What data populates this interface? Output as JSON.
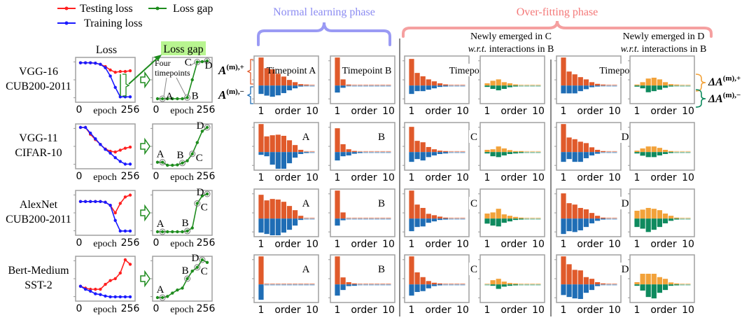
{
  "legend": {
    "testing": "Testing loss",
    "training": "Training loss",
    "gap": "Loss gap"
  },
  "headers": {
    "loss": "Loss",
    "loss_gap": "Loss gap",
    "normal_phase": "Normal learning phase",
    "overfit_phase": "Over-fitting phase",
    "newly_c": {
      "line1": "Newly emerged in C",
      "wrt": "w.r.t.",
      "line2": " interactions in B"
    },
    "newly_d": {
      "line1": "Newly emerged in D",
      "wrt": "w.r.t.",
      "line2": " interactions in B"
    }
  },
  "annotations": {
    "four_timepoints": [
      "Four",
      "timepoints"
    ],
    "a_plus": {
      "base": "A",
      "sup": "(m),+"
    },
    "a_minus": {
      "base": "A",
      "sup": "(m),−"
    },
    "delta_plus": {
      "base": "ΔA",
      "sup": "(m),+"
    },
    "delta_minus": {
      "base": "ΔA",
      "sup": "(m),−"
    }
  },
  "axis": {
    "epoch": "epoch",
    "epoch_min": "0",
    "epoch_max": "256",
    "order": "order",
    "order_min": "1",
    "order_max": "10"
  },
  "colors": {
    "testing": "#ff2020",
    "training": "#1a1aff",
    "gap": "#1e8c1e",
    "pos": "#e05a2b",
    "neg": "#1f6db5",
    "dpos": "#f2a23a",
    "dneg": "#0e8a5e",
    "normal_phase": "#8c8cf2",
    "overfit_phase": "#f47878",
    "highlight": "#b8f590"
  },
  "chart_data": [
    {
      "model": [
        "VGG-16",
        "CUB200-2011"
      ],
      "loss": {
        "type": "line",
        "xlabel": "epoch",
        "x": [
          0,
          26,
          51,
          77,
          102,
          128,
          154,
          179,
          205,
          230,
          256
        ],
        "series": [
          {
            "name": "Testing loss",
            "values": [
              0.95,
              0.95,
              0.95,
              0.94,
              0.91,
              0.85,
              0.76,
              0.7,
              0.72,
              0.72,
              0.74
            ]
          },
          {
            "name": "Training loss",
            "values": [
              0.95,
              0.95,
              0.95,
              0.94,
              0.91,
              0.82,
              0.6,
              0.3,
              0.05,
              0.05,
              0.05
            ]
          }
        ]
      },
      "gap": {
        "type": "line",
        "xlabel": "epoch",
        "x": [
          0,
          26,
          51,
          77,
          102,
          128,
          154,
          179,
          205,
          230,
          256
        ],
        "values": [
          0,
          0,
          0,
          0,
          0,
          0,
          0.03,
          0.5,
          0.97,
          0.98,
          1.0
        ],
        "timepoints": {
          "A": 1,
          "B": 6,
          "C": 8,
          "D": 10
        }
      },
      "bar_labels": {
        "A": "Timepoint A",
        "B": "Timepoint B",
        "C": "Timepoint C",
        "D": "Timepoint D"
      },
      "bars": {
        "A": {
          "pos": [
            1.0,
            0.62,
            0.58,
            0.42,
            0.32,
            0.2,
            0.12,
            0.05,
            0.02,
            0
          ],
          "neg": [
            -0.3,
            -0.36,
            -0.4,
            -0.35,
            -0.27,
            -0.17,
            -0.1,
            -0.03,
            -0.01,
            0
          ]
        },
        "B": {
          "pos": [
            1.0,
            0.22,
            0.03,
            0.01,
            0,
            0,
            0,
            0,
            0,
            0
          ],
          "neg": [
            -0.25,
            -0.08,
            -0.01,
            -0.01,
            -0.01,
            0,
            0,
            0,
            0,
            0
          ]
        },
        "C": {
          "pos": [
            0.95,
            0.45,
            0.33,
            0.22,
            0.15,
            0.08,
            0.04,
            0.01,
            0.01,
            0
          ],
          "neg": [
            -0.3,
            -0.2,
            -0.2,
            -0.15,
            -0.1,
            -0.05,
            -0.02,
            -0.01,
            -0.01,
            0
          ]
        },
        "dC": {
          "pos": [
            0.08,
            0.17,
            0.22,
            0.12,
            0.08,
            0.04,
            0.01,
            0,
            0,
            0
          ],
          "neg": [
            -0.05,
            -0.12,
            -0.17,
            -0.12,
            -0.06,
            -0.03,
            -0.01,
            -0.01,
            -0.01,
            0
          ]
        },
        "D": {
          "pos": [
            1.0,
            0.5,
            0.4,
            0.3,
            0.22,
            0.12,
            0.06,
            0.02,
            0.01,
            0
          ],
          "neg": [
            -0.28,
            -0.28,
            -0.28,
            -0.2,
            -0.13,
            -0.06,
            -0.02,
            -0.01,
            0,
            0
          ]
        },
        "dD": {
          "pos": [
            0.02,
            0.12,
            0.25,
            0.28,
            0.22,
            0.12,
            0.05,
            0.02,
            0,
            0
          ],
          "neg": [
            -0.04,
            -0.1,
            -0.24,
            -0.2,
            -0.15,
            -0.08,
            -0.03,
            -0.01,
            -0.01,
            0
          ]
        }
      }
    },
    {
      "model": [
        "VGG-11",
        "CIFAR-10"
      ],
      "loss": {
        "type": "line",
        "xlabel": "epoch",
        "x": [
          0,
          26,
          51,
          77,
          102,
          128,
          154,
          179,
          205,
          230,
          256
        ],
        "series": [
          {
            "name": "Testing loss",
            "values": [
              1.0,
              1.0,
              0.82,
              0.68,
              0.55,
              0.43,
              0.37,
              0.35,
              0.4,
              0.45,
              0.48
            ]
          },
          {
            "name": "Training loss",
            "values": [
              1.0,
              1.0,
              0.85,
              0.7,
              0.55,
              0.42,
              0.32,
              0.2,
              0.1,
              0.03,
              0.03
            ]
          }
        ]
      },
      "gap": {
        "type": "line",
        "xlabel": "epoch",
        "x": [
          0,
          26,
          51,
          77,
          102,
          128,
          154,
          179,
          205,
          230,
          256
        ],
        "values": [
          0.08,
          0.08,
          0,
          0,
          0.01,
          0.06,
          0.12,
          0.3,
          0.6,
          0.9,
          1.0
        ],
        "timepoints": {
          "A": 1,
          "B": 5,
          "C": 7,
          "D": 10
        }
      },
      "bar_labels": {
        "A": "A",
        "B": "B",
        "C": "C",
        "D": "D"
      },
      "bars": {
        "A": {
          "pos": [
            1.0,
            0.56,
            0.6,
            0.62,
            0.58,
            0.42,
            0.25,
            0.08,
            0.01,
            0
          ],
          "neg": [
            -0.1,
            -0.15,
            -0.45,
            -0.62,
            -0.6,
            -0.4,
            -0.2,
            -0.07,
            -0.02,
            0
          ]
        },
        "B": {
          "pos": [
            0.85,
            0.28,
            0.1,
            0.04,
            0.01,
            0.01,
            0,
            0,
            0,
            0
          ],
          "neg": [
            -0.3,
            -0.15,
            -0.12,
            -0.06,
            -0.03,
            -0.01,
            -0.01,
            -0.01,
            0,
            0
          ]
        },
        "C": {
          "pos": [
            0.9,
            0.4,
            0.35,
            0.18,
            0.1,
            0.05,
            0.02,
            0,
            0,
            0
          ],
          "neg": [
            -0.35,
            -0.25,
            -0.3,
            -0.18,
            -0.12,
            -0.07,
            -0.05,
            -0.01,
            -0.01,
            0
          ]
        },
        "dC": {
          "pos": [
            0.08,
            0.1,
            0.2,
            0.13,
            0.07,
            0.03,
            0.02,
            0,
            0,
            0
          ],
          "neg": [
            -0.05,
            -0.15,
            -0.18,
            -0.12,
            -0.07,
            -0.05,
            -0.02,
            -0.01,
            -0.01,
            0
          ]
        },
        "D": {
          "pos": [
            1.0,
            0.52,
            0.46,
            0.37,
            0.32,
            0.17,
            0.08,
            0.02,
            0.01,
            0
          ],
          "neg": [
            -0.35,
            -0.25,
            -0.35,
            -0.35,
            -0.22,
            -0.12,
            -0.06,
            -0.01,
            -0.01,
            0
          ]
        },
        "dD": {
          "pos": [
            0.05,
            0.13,
            0.2,
            0.2,
            0.15,
            0.08,
            0.02,
            0,
            0,
            0
          ],
          "neg": [
            -0.05,
            -0.13,
            -0.18,
            -0.18,
            -0.12,
            -0.07,
            -0.03,
            -0.01,
            -0.01,
            0
          ]
        }
      }
    },
    {
      "model": [
        "AlexNet",
        "CUB200-2011"
      ],
      "loss": {
        "type": "line",
        "xlabel": "epoch",
        "x": [
          0,
          26,
          51,
          77,
          102,
          128,
          154,
          179,
          205,
          230,
          256
        ],
        "series": [
          {
            "name": "Testing loss",
            "values": [
              0.8,
              0.8,
              0.8,
              0.8,
              0.8,
              0.78,
              0.7,
              0.5,
              0.75,
              0.92,
              0.97
            ]
          },
          {
            "name": "Training loss",
            "values": [
              0.8,
              0.8,
              0.8,
              0.8,
              0.8,
              0.78,
              0.7,
              0.3,
              0.02,
              0.02,
              0.02
            ]
          }
        ]
      },
      "gap": {
        "type": "line",
        "xlabel": "epoch",
        "x": [
          0,
          26,
          51,
          77,
          102,
          128,
          154,
          179,
          205,
          230,
          256
        ],
        "values": [
          0,
          0,
          0,
          0,
          0,
          0,
          0.02,
          0.1,
          0.75,
          0.95,
          1.0
        ],
        "timepoints": {
          "A": 1,
          "B": 6,
          "C": 8,
          "D": 10
        }
      },
      "bar_labels": {
        "A": "A",
        "B": "B",
        "C": "C",
        "D": "D"
      },
      "bars": {
        "A": {
          "pos": [
            0.85,
            0.65,
            0.7,
            0.68,
            0.6,
            0.45,
            0.3,
            0.1,
            0.01,
            0
          ],
          "neg": [
            -0.5,
            -0.55,
            -0.62,
            -0.6,
            -0.5,
            -0.4,
            -0.25,
            -0.05,
            -0.01,
            0
          ]
        },
        "B": {
          "pos": [
            1.0,
            0.22,
            0.01,
            0.01,
            0,
            0,
            0,
            0,
            0,
            0
          ],
          "neg": [
            -0.25,
            -0.06,
            0,
            0,
            0,
            0,
            0,
            0,
            0,
            0
          ]
        },
        "C": {
          "pos": [
            1.0,
            0.5,
            0.38,
            0.17,
            0.12,
            0.07,
            0.03,
            0,
            0,
            0
          ],
          "neg": [
            -0.45,
            -0.3,
            -0.28,
            -0.15,
            -0.1,
            -0.05,
            -0.03,
            -0.01,
            -0.01,
            0
          ]
        },
        "dC": {
          "pos": [
            0.18,
            0.22,
            0.35,
            0.15,
            0.1,
            0.06,
            0.03,
            0.01,
            0.01,
            0
          ],
          "neg": [
            -0.18,
            -0.25,
            -0.28,
            -0.15,
            -0.1,
            -0.05,
            -0.03,
            -0.01,
            -0.01,
            0
          ]
        },
        "D": {
          "pos": [
            0.9,
            0.55,
            0.5,
            0.38,
            0.33,
            0.2,
            0.1,
            0.03,
            0.01,
            0
          ],
          "neg": [
            -0.55,
            -0.45,
            -0.48,
            -0.42,
            -0.3,
            -0.17,
            -0.08,
            -0.02,
            -0.01,
            0
          ]
        },
        "dD": {
          "pos": [
            0.28,
            0.32,
            0.38,
            0.35,
            0.3,
            0.18,
            0.1,
            0.02,
            0.01,
            0
          ],
          "neg": [
            -0.3,
            -0.36,
            -0.48,
            -0.4,
            -0.3,
            -0.17,
            -0.08,
            -0.02,
            -0.01,
            0
          ]
        }
      }
    },
    {
      "model": [
        "Bert-Medium",
        "SST-2"
      ],
      "loss": {
        "type": "line",
        "xlabel": "epoch",
        "x": [
          0,
          26,
          51,
          77,
          102,
          128,
          154,
          179,
          205,
          230,
          256
        ],
        "series": [
          {
            "name": "Testing loss",
            "values": [
              0.3,
              0.25,
              0.22,
              0.22,
              0.22,
              0.35,
              0.45,
              0.5,
              0.65,
              1.0,
              0.88
            ]
          },
          {
            "name": "Training loss",
            "values": [
              0.3,
              0.22,
              0.17,
              0.1,
              0.08,
              0.04,
              0.02,
              0.02,
              0.02,
              0.02,
              0.02
            ]
          }
        ]
      },
      "gap": {
        "type": "line",
        "xlabel": "epoch",
        "x": [
          0,
          26,
          51,
          77,
          102,
          128,
          154,
          179,
          205,
          230,
          256
        ],
        "values": [
          0,
          0,
          0.03,
          0.12,
          0.2,
          0.25,
          0.5,
          0.7,
          0.8,
          1.0,
          0.93
        ],
        "timepoints": {
          "A": 1,
          "B": 6,
          "C": 8,
          "D": 9
        }
      },
      "bar_labels": {
        "A": "A",
        "B": "B",
        "C": "C",
        "D": "D"
      },
      "bars": {
        "A": {
          "pos": [
            1.0,
            0,
            0,
            0,
            0,
            0,
            0,
            0,
            0,
            0
          ],
          "neg": [
            -0.55,
            0,
            0,
            0,
            0,
            0,
            0,
            0,
            0,
            0
          ]
        },
        "B": {
          "pos": [
            1.0,
            0.25,
            0.08,
            0.03,
            0.01,
            0,
            0,
            0,
            0,
            0
          ],
          "neg": [
            -0.4,
            -0.2,
            -0.06,
            -0.05,
            -0.01,
            0,
            0,
            0,
            0,
            0
          ]
        },
        "C": {
          "pos": [
            1.0,
            0.43,
            0.26,
            0.12,
            0.06,
            0.02,
            0,
            0,
            0,
            0
          ],
          "neg": [
            -0.4,
            -0.27,
            -0.24,
            -0.14,
            -0.06,
            -0.03,
            -0.01,
            -0.01,
            -0.01,
            -0.01
          ]
        },
        "dC": {
          "pos": [
            0,
            0.15,
            0.2,
            0.1,
            0.05,
            0.02,
            0,
            0,
            0,
            0
          ],
          "neg": [
            -0.01,
            -0.05,
            -0.16,
            -0.08,
            -0.05,
            -0.03,
            -0.01,
            -0.01,
            -0.01,
            0
          ]
        },
        "D": {
          "pos": [
            1.0,
            0.72,
            0.52,
            0.5,
            0.26,
            0.2,
            0.08,
            0.02,
            0.01,
            0
          ],
          "neg": [
            -0.38,
            -0.45,
            -0.5,
            -0.52,
            -0.3,
            -0.2,
            -0.06,
            -0.01,
            -0.01,
            0
          ]
        },
        "dD": {
          "pos": [
            0.08,
            0.38,
            0.38,
            0.38,
            0.26,
            0.2,
            0.07,
            0.02,
            0,
            0
          ],
          "neg": [
            -0.05,
            -0.22,
            -0.45,
            -0.5,
            -0.3,
            -0.2,
            -0.05,
            -0.02,
            -0.01,
            0
          ]
        }
      }
    }
  ]
}
